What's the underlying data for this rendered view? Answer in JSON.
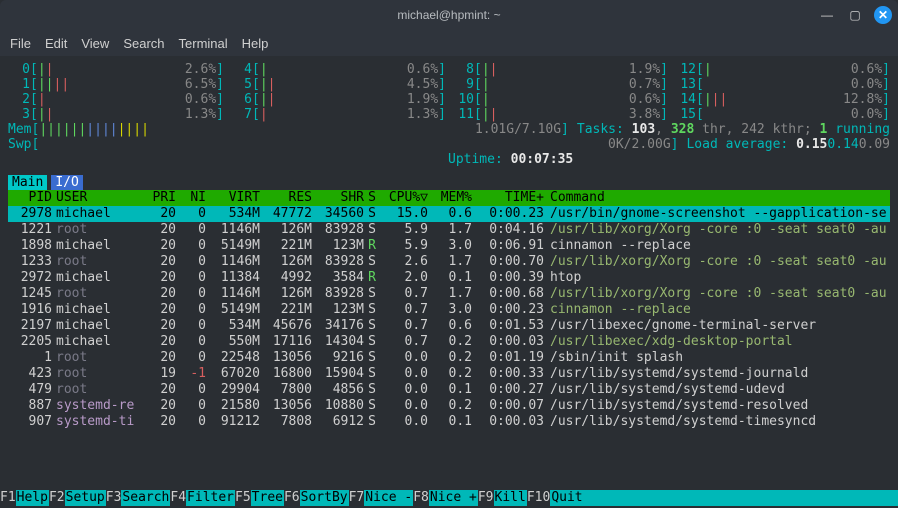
{
  "window": {
    "title": "michael@hpmint: ~"
  },
  "menu": [
    "File",
    "Edit",
    "View",
    "Search",
    "Terminal",
    "Help"
  ],
  "cpu_meters": [
    {
      "id": "0",
      "bars": "||",
      "colors": [
        "green",
        "red"
      ],
      "pct": "2.6%"
    },
    {
      "id": "4",
      "bars": "|",
      "colors": [
        "green"
      ],
      "pct": "0.6%"
    },
    {
      "id": "8",
      "bars": "||",
      "colors": [
        "green",
        "red"
      ],
      "pct": "1.9%"
    },
    {
      "id": "12",
      "bars": "|",
      "colors": [
        "green"
      ],
      "pct": "0.6%"
    },
    {
      "id": "1",
      "bars": "||||",
      "colors": [
        "green",
        "green",
        "red",
        "red"
      ],
      "pct": "6.5%"
    },
    {
      "id": "5",
      "bars": "||",
      "colors": [
        "green",
        "red"
      ],
      "pct": "4.5%"
    },
    {
      "id": "9",
      "bars": "|",
      "colors": [
        "green"
      ],
      "pct": "0.7%"
    },
    {
      "id": "13",
      "bars": "",
      "colors": [],
      "pct": "0.0%"
    },
    {
      "id": "2",
      "bars": "|",
      "colors": [
        "red"
      ],
      "pct": "0.6%"
    },
    {
      "id": "6",
      "bars": "||",
      "colors": [
        "green",
        "red"
      ],
      "pct": "1.9%"
    },
    {
      "id": "10",
      "bars": "|",
      "colors": [
        "green"
      ],
      "pct": "0.6%"
    },
    {
      "id": "14",
      "bars": "|||",
      "colors": [
        "green",
        "red",
        "red"
      ],
      "pct": "12.8%"
    },
    {
      "id": "3",
      "bars": "||",
      "colors": [
        "green",
        "red"
      ],
      "pct": "1.3%"
    },
    {
      "id": "7",
      "bars": "|",
      "colors": [
        "red"
      ],
      "pct": "1.3%"
    },
    {
      "id": "11",
      "bars": "||",
      "colors": [
        "green",
        "red"
      ],
      "pct": "3.8%"
    },
    {
      "id": "15",
      "bars": "",
      "colors": [],
      "pct": "0.0%"
    }
  ],
  "mem": {
    "label": "Mem",
    "bars": "||||||||||||||",
    "value": "1.01G/7.10G"
  },
  "swp": {
    "label": "Swp",
    "bars": "",
    "value": "0K/2.00G"
  },
  "tasks": {
    "total": "103",
    "thr": "328",
    "kthr": "242",
    "running": "1"
  },
  "loadavg": {
    "l1": "0.15",
    "l2": "0.14",
    "l3": "0.09"
  },
  "uptime": "00:07:35",
  "tabs": [
    {
      "label": "Main",
      "active": true
    },
    {
      "label": "I/O",
      "active": false
    }
  ],
  "columns": [
    "PID",
    "USER",
    "PRI",
    "NI",
    "VIRT",
    "RES",
    "SHR",
    "S",
    "CPU%▽",
    "MEM%",
    "TIME+",
    "Command"
  ],
  "processes": [
    {
      "pid": "2978",
      "user": "michael",
      "utype": "",
      "pri": "20",
      "ni": "0",
      "virt": "534M",
      "res": "47772",
      "shr": "34560",
      "s": "S",
      "cpu": "15.0",
      "mem": "0.6",
      "time": "0:00.23",
      "cmd": "/usr/bin/gnome-screenshot --gapplication-se",
      "cmdalt": false,
      "sel": true
    },
    {
      "pid": "1221",
      "user": "root",
      "utype": "root",
      "pri": "20",
      "ni": "0",
      "virt": "1146M",
      "res": "126M",
      "shr": "83928",
      "s": "S",
      "cpu": "5.9",
      "mem": "1.7",
      "time": "0:04.16",
      "cmd": "/usr/lib/xorg/Xorg -core :0 -seat seat0 -au",
      "cmdalt": true
    },
    {
      "pid": "1898",
      "user": "michael",
      "utype": "",
      "pri": "20",
      "ni": "0",
      "virt": "5149M",
      "res": "221M",
      "shr": "123M",
      "s": "R",
      "cpu": "5.9",
      "mem": "3.0",
      "time": "0:06.91",
      "cmd": "cinnamon --replace",
      "cmdalt": false
    },
    {
      "pid": "1233",
      "user": "root",
      "utype": "root",
      "pri": "20",
      "ni": "0",
      "virt": "1146M",
      "res": "126M",
      "shr": "83928",
      "s": "S",
      "cpu": "2.6",
      "mem": "1.7",
      "time": "0:00.70",
      "cmd": "/usr/lib/xorg/Xorg -core :0 -seat seat0 -au",
      "cmdalt": true
    },
    {
      "pid": "2972",
      "user": "michael",
      "utype": "",
      "pri": "20",
      "ni": "0",
      "virt": "11384",
      "res": "4992",
      "shr": "3584",
      "s": "R",
      "cpu": "2.0",
      "mem": "0.1",
      "time": "0:00.39",
      "cmd": "htop",
      "cmdalt": false
    },
    {
      "pid": "1245",
      "user": "root",
      "utype": "root",
      "pri": "20",
      "ni": "0",
      "virt": "1146M",
      "res": "126M",
      "shr": "83928",
      "s": "S",
      "cpu": "0.7",
      "mem": "1.7",
      "time": "0:00.68",
      "cmd": "/usr/lib/xorg/Xorg -core :0 -seat seat0 -au",
      "cmdalt": true
    },
    {
      "pid": "1916",
      "user": "michael",
      "utype": "",
      "pri": "20",
      "ni": "0",
      "virt": "5149M",
      "res": "221M",
      "shr": "123M",
      "s": "S",
      "cpu": "0.7",
      "mem": "3.0",
      "time": "0:00.23",
      "cmd": "cinnamon --replace",
      "cmdalt": true
    },
    {
      "pid": "2197",
      "user": "michael",
      "utype": "",
      "pri": "20",
      "ni": "0",
      "virt": "534M",
      "res": "45676",
      "shr": "34176",
      "s": "S",
      "cpu": "0.7",
      "mem": "0.6",
      "time": "0:01.53",
      "cmd": "/usr/libexec/gnome-terminal-server",
      "cmdalt": false
    },
    {
      "pid": "2205",
      "user": "michael",
      "utype": "",
      "pri": "20",
      "ni": "0",
      "virt": "550M",
      "res": "17116",
      "shr": "14304",
      "s": "S",
      "cpu": "0.7",
      "mem": "0.2",
      "time": "0:00.03",
      "cmd": "/usr/libexec/xdg-desktop-portal",
      "cmdalt": true
    },
    {
      "pid": "1",
      "user": "root",
      "utype": "root",
      "pri": "20",
      "ni": "0",
      "virt": "22548",
      "res": "13056",
      "shr": "9216",
      "s": "S",
      "cpu": "0.0",
      "mem": "0.2",
      "time": "0:01.19",
      "cmd": "/sbin/init splash",
      "cmdalt": false
    },
    {
      "pid": "423",
      "user": "root",
      "utype": "root",
      "pri": "19",
      "ni": "-1",
      "virt": "67020",
      "res": "16800",
      "shr": "15904",
      "s": "S",
      "cpu": "0.0",
      "mem": "0.2",
      "time": "0:00.33",
      "cmd": "/usr/lib/systemd/systemd-journald",
      "cmdalt": false,
      "neg": true
    },
    {
      "pid": "479",
      "user": "root",
      "utype": "root",
      "pri": "20",
      "ni": "0",
      "virt": "29904",
      "res": "7800",
      "shr": "4856",
      "s": "S",
      "cpu": "0.0",
      "mem": "0.1",
      "time": "0:00.27",
      "cmd": "/usr/lib/systemd/systemd-udevd",
      "cmdalt": false
    },
    {
      "pid": "887",
      "user": "systemd-re",
      "utype": "sys",
      "pri": "20",
      "ni": "0",
      "virt": "21580",
      "res": "13056",
      "shr": "10880",
      "s": "S",
      "cpu": "0.0",
      "mem": "0.2",
      "time": "0:00.07",
      "cmd": "/usr/lib/systemd/systemd-resolved",
      "cmdalt": false
    },
    {
      "pid": "907",
      "user": "systemd-ti",
      "utype": "sys",
      "pri": "20",
      "ni": "0",
      "virt": "91212",
      "res": "7808",
      "shr": "6912",
      "s": "S",
      "cpu": "0.0",
      "mem": "0.1",
      "time": "0:00.03",
      "cmd": "/usr/lib/systemd/systemd-timesyncd",
      "cmdalt": false
    }
  ],
  "fn_keys": [
    {
      "key": "F1",
      "label": "Help  "
    },
    {
      "key": "F2",
      "label": "Setup "
    },
    {
      "key": "F3",
      "label": "Search"
    },
    {
      "key": "F4",
      "label": "Filter"
    },
    {
      "key": "F5",
      "label": "Tree  "
    },
    {
      "key": "F6",
      "label": "SortBy"
    },
    {
      "key": "F7",
      "label": "Nice -"
    },
    {
      "key": "F8",
      "label": "Nice +"
    },
    {
      "key": "F9",
      "label": "Kill  "
    },
    {
      "key": "F10",
      "label": "Quit  "
    }
  ],
  "colors": {
    "bg": "#2a2e33",
    "titlebar": "#2f343c",
    "cyan": "#00b8b8",
    "green": "#5fd75f",
    "red": "#d75f5f",
    "gray": "#888",
    "header_bg": "#1faa00",
    "tab_inactive": "#3a6cd0",
    "close_btn": "#2196f3"
  }
}
